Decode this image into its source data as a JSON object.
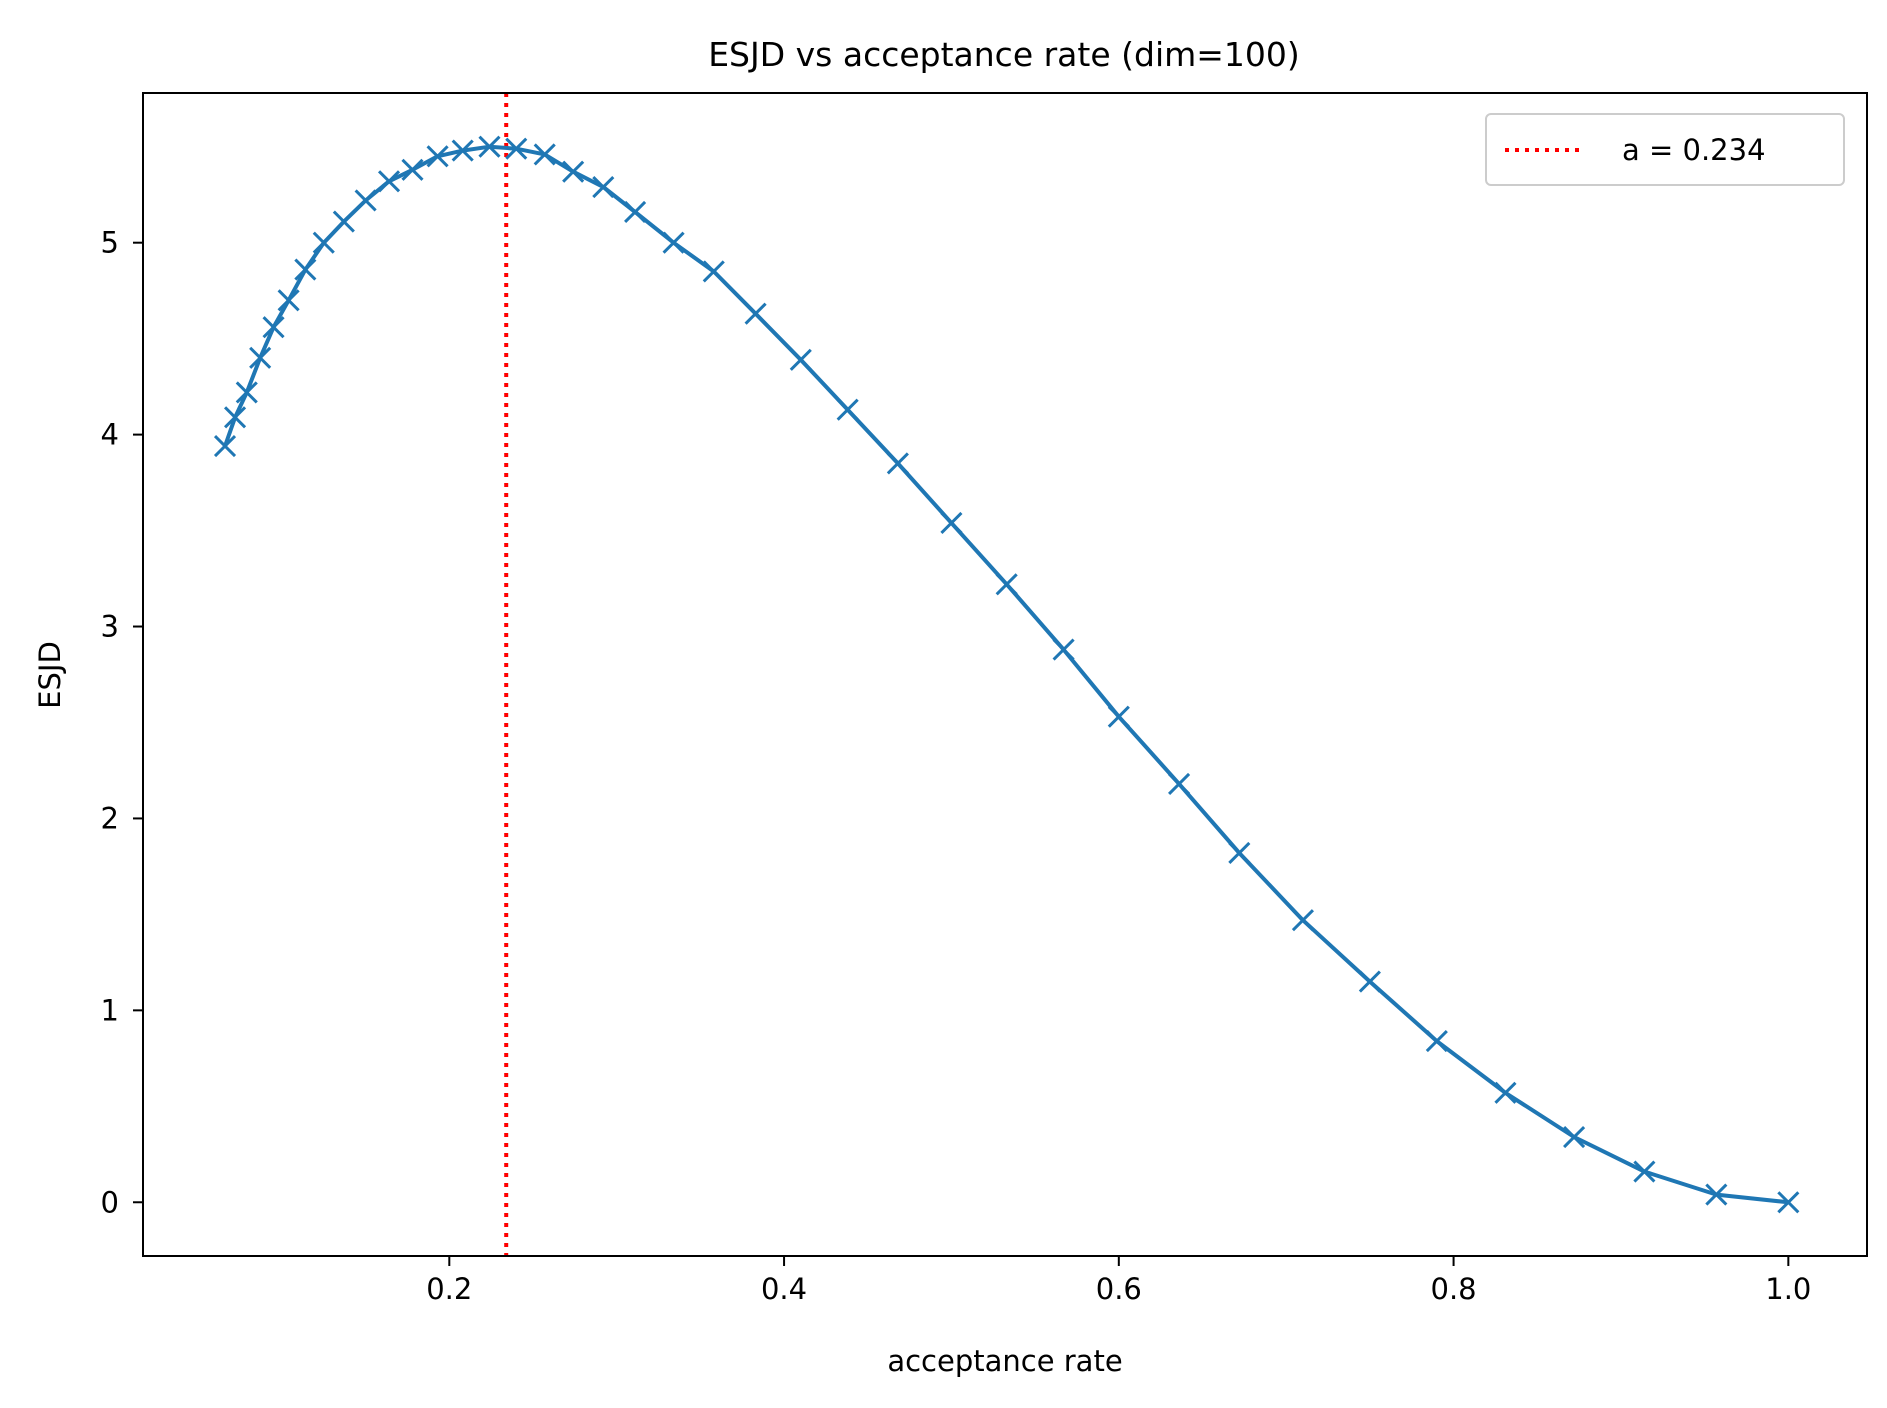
{
  "chart_data": {
    "type": "line",
    "title": "ESJD vs acceptance rate (dim=100)",
    "xlabel": "acceptance rate",
    "ylabel": "ESJD",
    "xlim": [
      0.017,
      1.047
    ],
    "ylim": [
      -0.28,
      5.78
    ],
    "xticks": [
      0.2,
      0.4,
      0.6,
      0.8,
      1.0
    ],
    "xtick_labels": [
      "0.2",
      "0.4",
      "0.6",
      "0.8",
      "1.0"
    ],
    "yticks": [
      0,
      1,
      2,
      3,
      4,
      5
    ],
    "ytick_labels": [
      "0",
      "1",
      "2",
      "3",
      "4",
      "5"
    ],
    "grid": false,
    "legend": {
      "placement": "upper right",
      "entries": [
        {
          "label": "a = 0.234",
          "style": "dotted",
          "color": "#ff0000"
        }
      ]
    },
    "reference_lines": [
      {
        "orientation": "vertical",
        "x": 0.234,
        "color": "#ff0000",
        "style": "dotted"
      }
    ],
    "series": [
      {
        "color": "#1f77b4",
        "marker": "x",
        "x": [
          0.066,
          0.072,
          0.079,
          0.087,
          0.095,
          0.104,
          0.114,
          0.125,
          0.137,
          0.15,
          0.164,
          0.178,
          0.193,
          0.208,
          0.224,
          0.24,
          0.257,
          0.274,
          0.292,
          0.311,
          0.334,
          0.358,
          0.383,
          0.41,
          0.438,
          0.468,
          0.5,
          0.533,
          0.567,
          0.6,
          0.636,
          0.672,
          0.71,
          0.75,
          0.79,
          0.831,
          0.872,
          0.914,
          0.957,
          1.0
        ],
        "y": [
          3.94,
          4.09,
          4.22,
          4.4,
          4.56,
          4.7,
          4.86,
          5.0,
          5.11,
          5.22,
          5.32,
          5.38,
          5.45,
          5.48,
          5.5,
          5.49,
          5.46,
          5.37,
          5.29,
          5.16,
          5.0,
          4.85,
          4.63,
          4.39,
          4.13,
          3.85,
          3.54,
          3.22,
          2.88,
          2.53,
          2.18,
          1.82,
          1.47,
          1.15,
          0.84,
          0.57,
          0.34,
          0.16,
          0.04,
          0.0
        ]
      }
    ]
  }
}
